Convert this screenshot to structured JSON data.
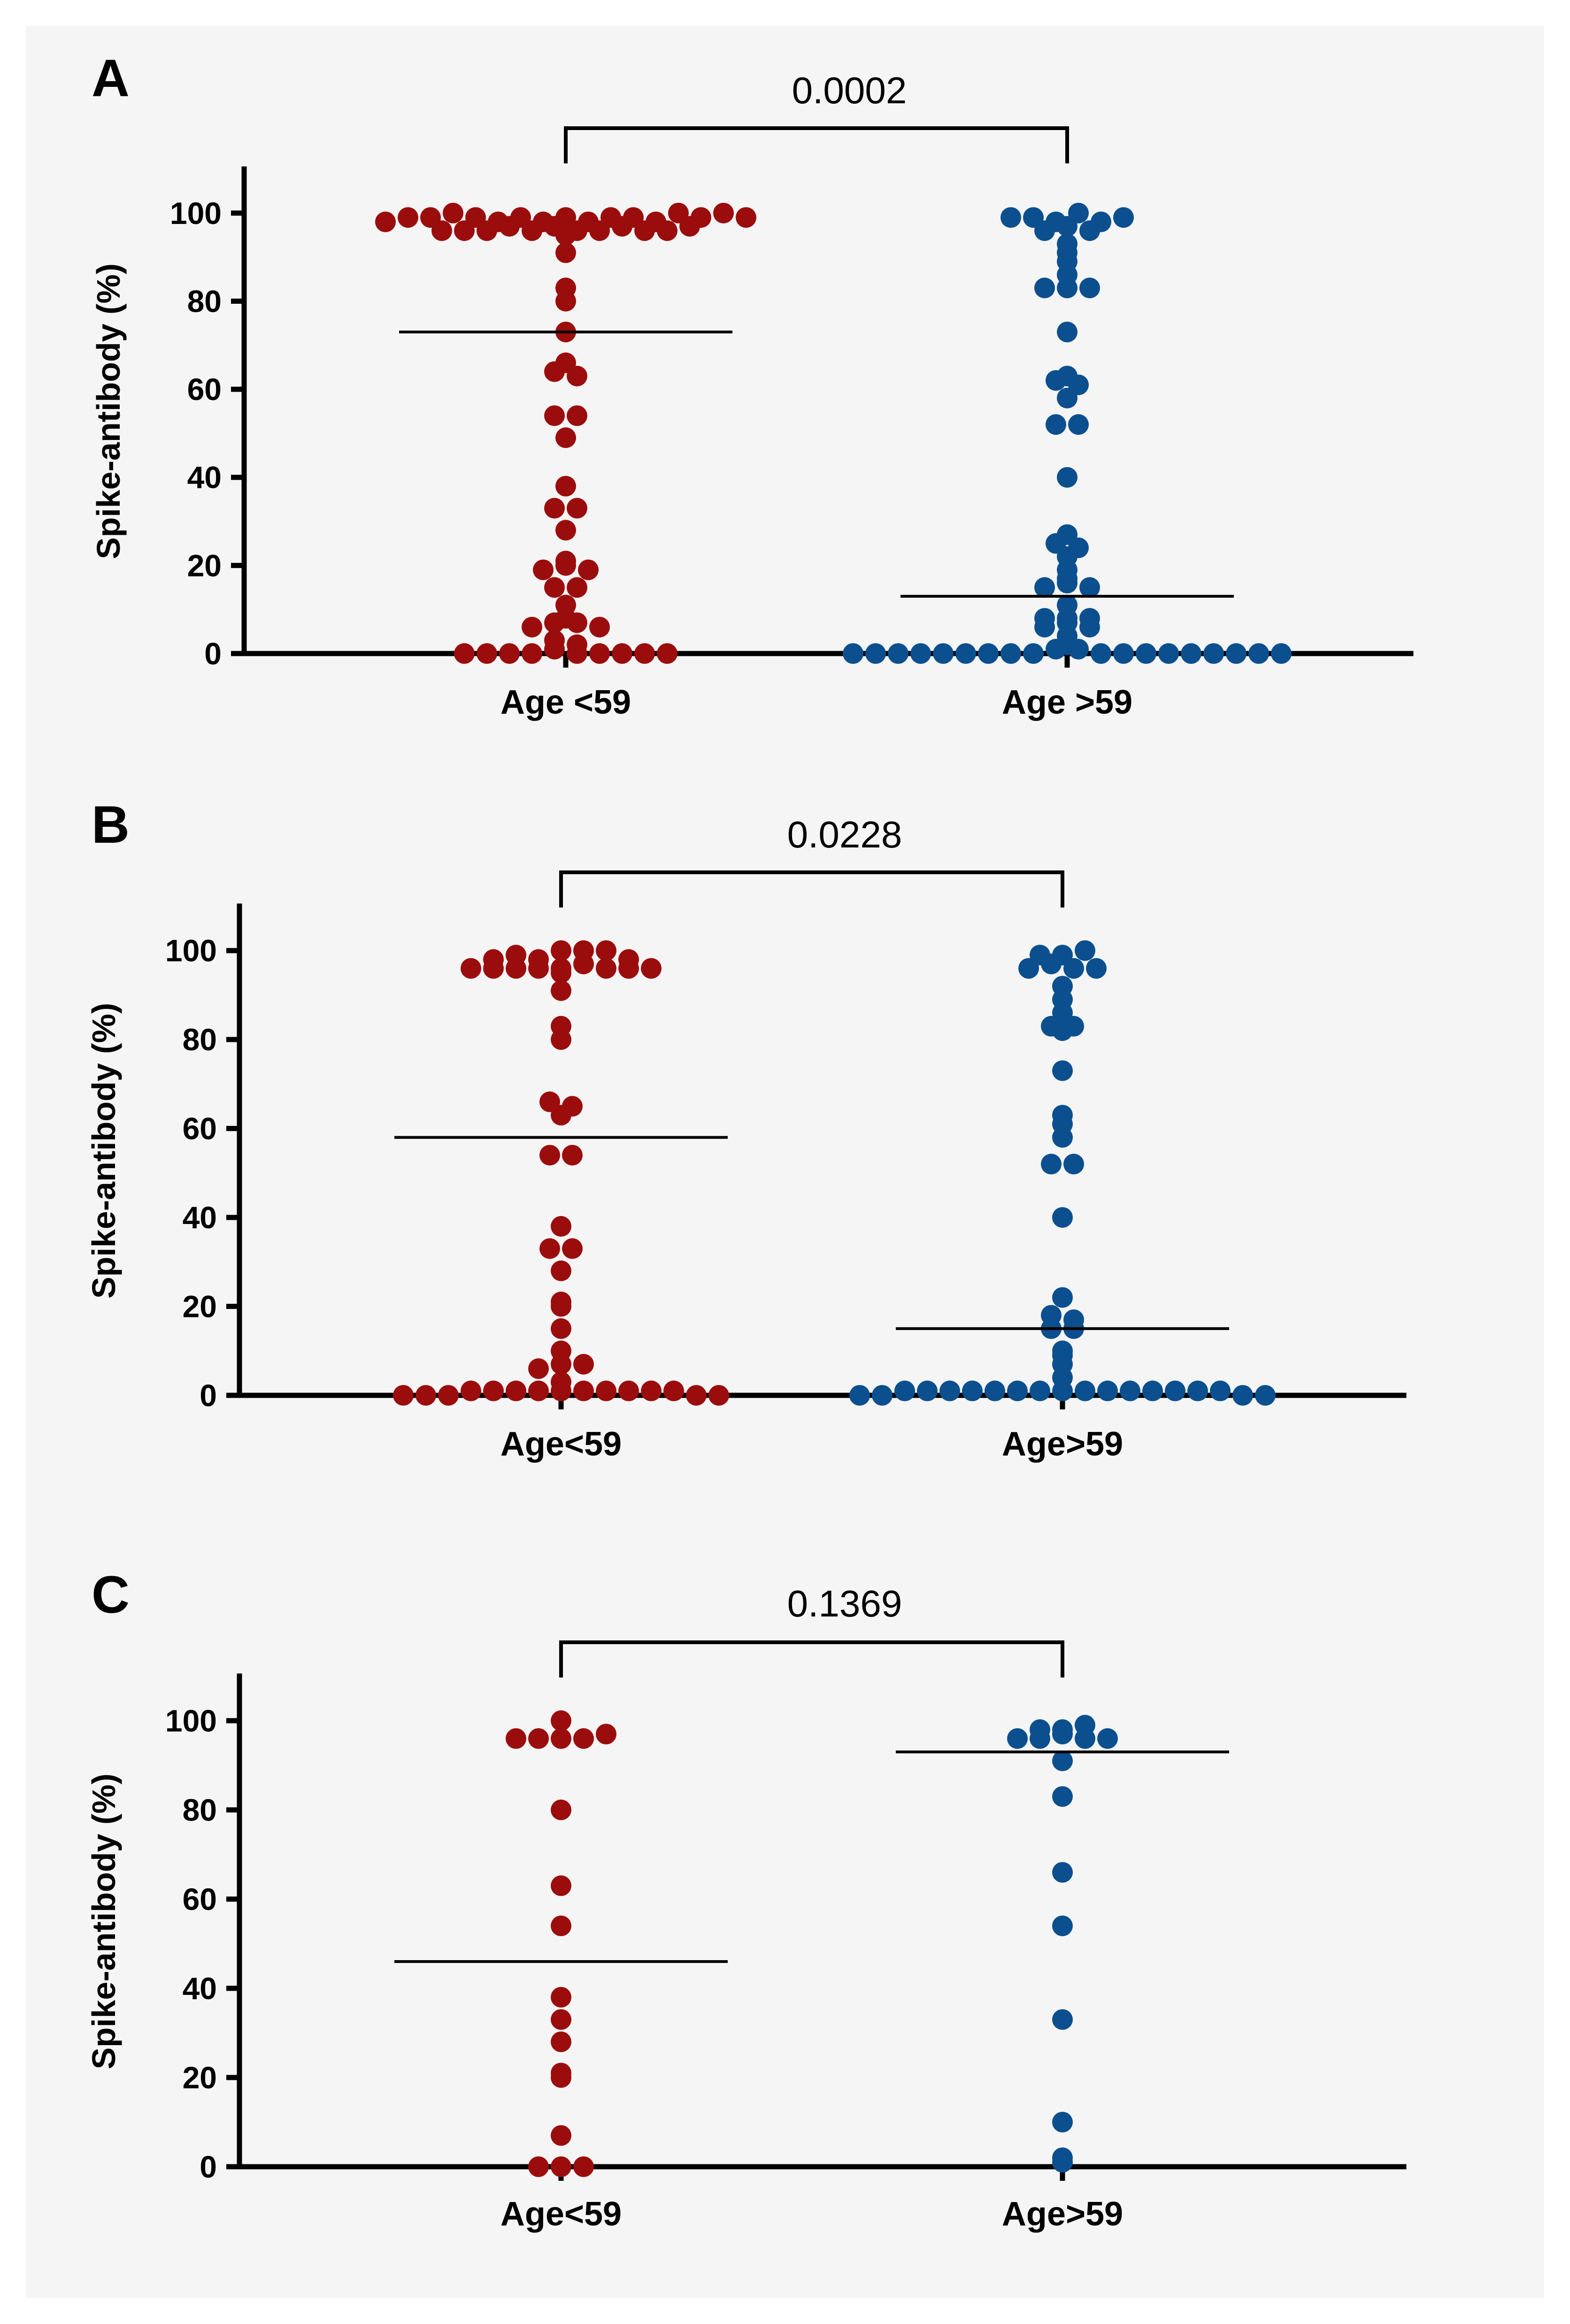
{
  "chart_data": [
    {
      "panel": "A",
      "type": "scatter",
      "ylabel": "Spike-antibody (%)",
      "yticks": [
        0,
        20,
        40,
        60,
        80,
        100
      ],
      "ylim": [
        0,
        110
      ],
      "p_value": "0.0002",
      "groups": [
        {
          "label": "Age <59",
          "color": "#9b0d0d",
          "mean": 73,
          "values": [
            99,
            98,
            98,
            99,
            99,
            99,
            98,
            97,
            98,
            96,
            96,
            96,
            97,
            97,
            99,
            96,
            96,
            96,
            96,
            96,
            95,
            100,
            100,
            99,
            99,
            100,
            99,
            99,
            98,
            97,
            91,
            83,
            80,
            73,
            66,
            64,
            63,
            54,
            54,
            49,
            38,
            33,
            33,
            28,
            21,
            20,
            19,
            19,
            15,
            15,
            11,
            8,
            7,
            7,
            6,
            6,
            3,
            2,
            1,
            0,
            0,
            0,
            0,
            0,
            0,
            0,
            0,
            0
          ]
        },
        {
          "label": "Age >59",
          "color": "#0b4f8f",
          "mean": 13,
          "values": [
            97,
            98,
            100,
            96,
            99,
            96,
            98,
            99,
            99,
            93,
            91,
            89,
            86,
            83,
            83,
            83,
            73,
            63,
            62,
            61,
            58,
            52,
            52,
            40,
            27,
            25,
            24,
            22,
            19,
            17,
            16,
            15,
            15,
            11,
            8,
            8,
            7,
            6,
            4,
            6,
            8,
            1,
            2,
            1,
            0,
            0,
            0,
            0,
            0,
            0,
            0,
            0,
            0,
            0,
            0,
            0,
            0,
            0,
            0,
            0,
            0,
            0
          ]
        }
      ]
    },
    {
      "panel": "B",
      "type": "scatter",
      "ylabel": "Spike-antibody (%)",
      "yticks": [
        0,
        20,
        40,
        60,
        80,
        100
      ],
      "ylim": [
        0,
        110
      ],
      "p_value": "0.0228",
      "groups": [
        {
          "label": "Age<59",
          "color": "#9b0d0d",
          "mean": 58,
          "values": [
            100,
            100,
            98,
            100,
            96,
            97,
            96,
            96,
            96,
            96,
            96,
            96,
            96,
            99,
            98,
            98,
            95,
            91,
            83,
            80,
            66,
            65,
            63,
            54,
            54,
            38,
            33,
            33,
            28,
            21,
            20,
            15,
            10,
            7,
            7,
            6,
            3,
            1,
            1,
            1,
            1,
            1,
            1,
            1,
            1,
            1,
            1,
            0,
            0,
            0,
            0,
            0
          ]
        },
        {
          "label": "Age>59",
          "color": "#0b4f8f",
          "mean": 15,
          "values": [
            99,
            97,
            96,
            96,
            100,
            99,
            96,
            92,
            89,
            86,
            83,
            83,
            82,
            73,
            63,
            61,
            58,
            52,
            52,
            40,
            22,
            18,
            17,
            15,
            15,
            10,
            9,
            7,
            4,
            1,
            1,
            1,
            1,
            1,
            1,
            1,
            1,
            1,
            1,
            1,
            1,
            1,
            1,
            1,
            0,
            0,
            0,
            0
          ]
        }
      ]
    },
    {
      "panel": "C",
      "type": "scatter",
      "ylabel": "Spike-antibody (%)",
      "yticks": [
        0,
        20,
        40,
        60,
        80,
        100
      ],
      "ylim": [
        0,
        110
      ],
      "p_value": "0.1369",
      "groups": [
        {
          "label": "Age<59",
          "color": "#9b0d0d",
          "mean": 46,
          "values": [
            96,
            96,
            96,
            97,
            100,
            96,
            80,
            63,
            54,
            38,
            33,
            28,
            21,
            20,
            7,
            0,
            0,
            0
          ]
        },
        {
          "label": "Age>59",
          "color": "#0b4f8f",
          "mean": 93,
          "values": [
            97,
            98,
            96,
            96,
            96,
            96,
            99,
            98,
            91,
            83,
            66,
            54,
            33,
            10,
            2,
            1
          ]
        }
      ]
    }
  ]
}
